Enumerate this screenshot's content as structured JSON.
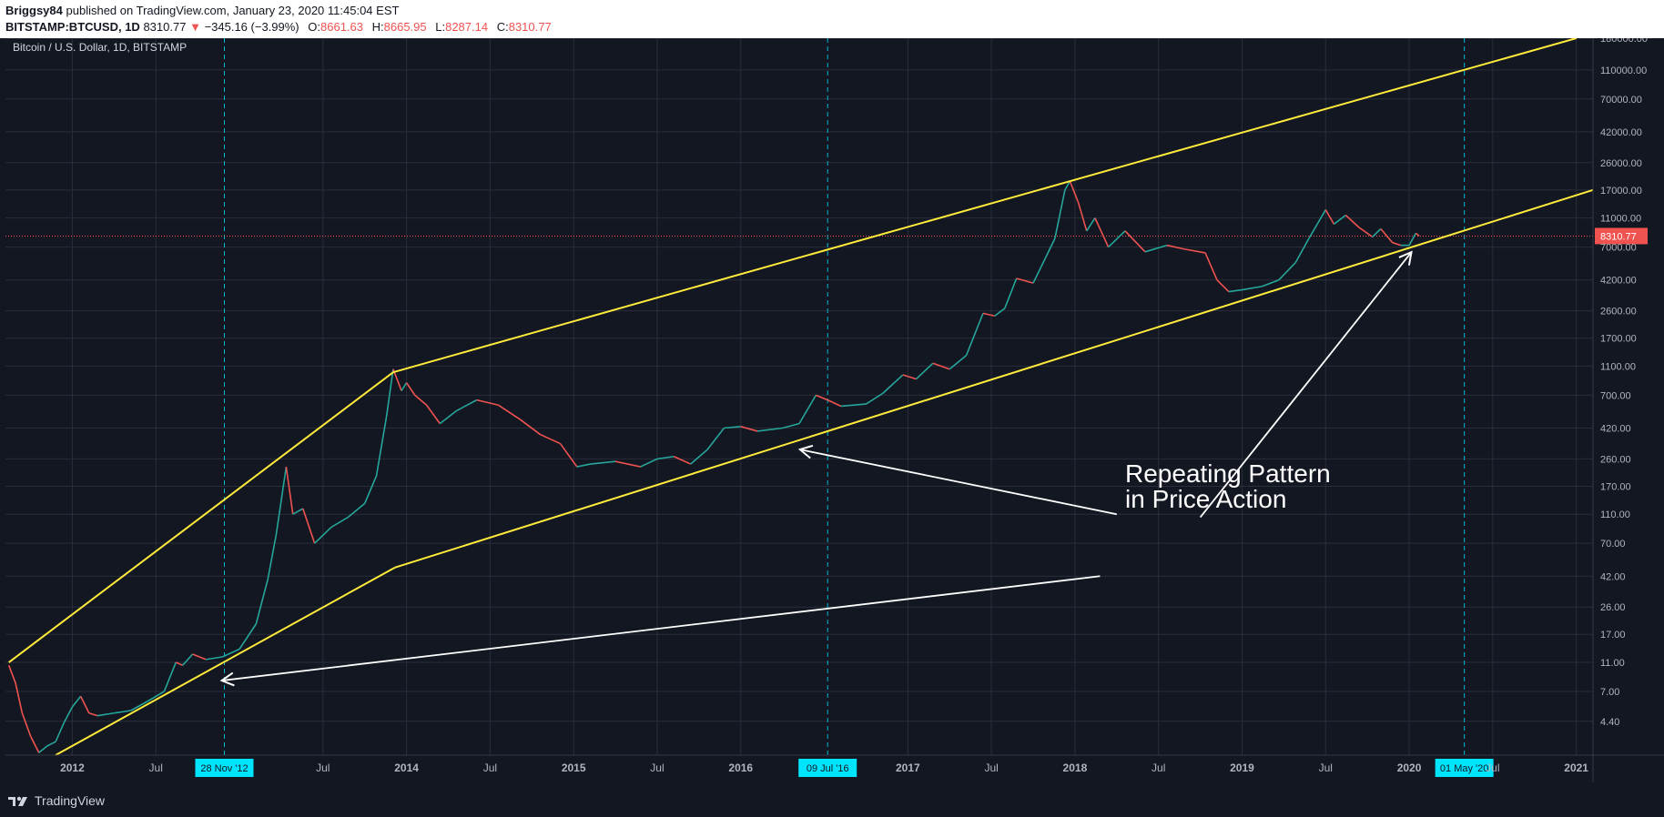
{
  "header": {
    "author": "Briggsy84",
    "published_text": "published on TradingView.com, January 23, 2020 11:45:04 EST",
    "symbol": "BITSTAMP:BTCUSD, 1D",
    "last_price": "8310.77",
    "change_arrow": "▼",
    "change": "−345.16 (−3.99%)",
    "open_label": "O:",
    "open": "8661.63",
    "high_label": "H:",
    "high": "8665.95",
    "low_label": "L:",
    "low": "8287.14",
    "close_label": "C:",
    "close": "8310.77"
  },
  "footer": {
    "brand": "TradingView"
  },
  "chart_data": {
    "type": "line",
    "title": "Bitcoin / U.S. Dollar, 1D, BITSTAMP",
    "scale": "log",
    "ylim": [
      2.6,
      180000
    ],
    "xlim": [
      2011.6,
      2021.1
    ],
    "y_ticks": [
      4.4,
      7,
      11,
      17,
      26,
      42,
      70,
      110,
      170,
      260,
      420,
      700,
      1100,
      1700,
      2600,
      4200,
      7000,
      11000,
      17000,
      26000,
      42000,
      70000,
      110000,
      180000
    ],
    "y_tick_labels": [
      "4.40",
      "7.00",
      "11.00",
      "17.00",
      "26.00",
      "42.00",
      "70.00",
      "110.00",
      "170.00",
      "260.00",
      "420.00",
      "700.00",
      "1100.00",
      "1700.00",
      "2600.00",
      "4200.00",
      "7000.00",
      "11000.00",
      "17000.00",
      "26000.00",
      "42000.00",
      "70000.00",
      "110000.00",
      "180000.00"
    ],
    "x_ticks": [
      {
        "x": 2012.0,
        "label": "2012",
        "bold": true
      },
      {
        "x": 2012.5,
        "label": "Jul",
        "bold": false
      },
      {
        "x": 2013.5,
        "label": "Jul",
        "bold": false
      },
      {
        "x": 2014.0,
        "label": "2014",
        "bold": true
      },
      {
        "x": 2014.5,
        "label": "Jul",
        "bold": false
      },
      {
        "x": 2015.0,
        "label": "2015",
        "bold": true
      },
      {
        "x": 2015.5,
        "label": "Jul",
        "bold": false
      },
      {
        "x": 2016.0,
        "label": "2016",
        "bold": true
      },
      {
        "x": 2017.0,
        "label": "2017",
        "bold": true
      },
      {
        "x": 2017.5,
        "label": "Jul",
        "bold": false
      },
      {
        "x": 2018.0,
        "label": "2018",
        "bold": true
      },
      {
        "x": 2018.5,
        "label": "Jul",
        "bold": false
      },
      {
        "x": 2019.0,
        "label": "2019",
        "bold": true
      },
      {
        "x": 2019.5,
        "label": "Jul",
        "bold": false
      },
      {
        "x": 2020.0,
        "label": "2020",
        "bold": true
      },
      {
        "x": 2020.5,
        "label": "Jul",
        "bold": false
      },
      {
        "x": 2021.0,
        "label": "2021",
        "bold": true
      }
    ],
    "event_markers": [
      {
        "x": 2012.91,
        "label": "28 Nov '12"
      },
      {
        "x": 2016.52,
        "label": "09 Jul '16"
      },
      {
        "x": 2020.33,
        "label": "01 May '20"
      }
    ],
    "current_price": 8310.77,
    "current_price_label": "8310.77",
    "series": [
      {
        "name": "BTCUSD",
        "points": [
          [
            2011.62,
            10.5
          ],
          [
            2011.66,
            8
          ],
          [
            2011.7,
            5
          ],
          [
            2011.75,
            3.5
          ],
          [
            2011.8,
            2.7
          ],
          [
            2011.85,
            3
          ],
          [
            2011.9,
            3.2
          ],
          [
            2011.95,
            4.3
          ],
          [
            2012.0,
            5.5
          ],
          [
            2012.05,
            6.5
          ],
          [
            2012.1,
            5
          ],
          [
            2012.15,
            4.8
          ],
          [
            2012.25,
            5
          ],
          [
            2012.35,
            5.2
          ],
          [
            2012.45,
            6
          ],
          [
            2012.55,
            7
          ],
          [
            2012.62,
            11
          ],
          [
            2012.66,
            10.5
          ],
          [
            2012.72,
            12.5
          ],
          [
            2012.8,
            11.5
          ],
          [
            2012.9,
            12
          ],
          [
            2013.0,
            13.5
          ],
          [
            2013.1,
            20
          ],
          [
            2013.17,
            40
          ],
          [
            2013.22,
            80
          ],
          [
            2013.28,
            230
          ],
          [
            2013.32,
            110
          ],
          [
            2013.38,
            120
          ],
          [
            2013.45,
            70
          ],
          [
            2013.55,
            90
          ],
          [
            2013.65,
            105
          ],
          [
            2013.75,
            130
          ],
          [
            2013.82,
            200
          ],
          [
            2013.88,
            500
          ],
          [
            2013.92,
            1050
          ],
          [
            2013.97,
            750
          ],
          [
            2014.0,
            850
          ],
          [
            2014.05,
            700
          ],
          [
            2014.12,
            600
          ],
          [
            2014.2,
            450
          ],
          [
            2014.3,
            550
          ],
          [
            2014.42,
            650
          ],
          [
            2014.55,
            600
          ],
          [
            2014.68,
            480
          ],
          [
            2014.8,
            380
          ],
          [
            2014.92,
            330
          ],
          [
            2015.02,
            230
          ],
          [
            2015.1,
            240
          ],
          [
            2015.25,
            250
          ],
          [
            2015.4,
            230
          ],
          [
            2015.5,
            260
          ],
          [
            2015.6,
            270
          ],
          [
            2015.7,
            240
          ],
          [
            2015.8,
            300
          ],
          [
            2015.9,
            420
          ],
          [
            2016.0,
            430
          ],
          [
            2016.1,
            400
          ],
          [
            2016.25,
            420
          ],
          [
            2016.35,
            450
          ],
          [
            2016.45,
            700
          ],
          [
            2016.52,
            650
          ],
          [
            2016.6,
            590
          ],
          [
            2016.75,
            610
          ],
          [
            2016.85,
            720
          ],
          [
            2016.97,
            960
          ],
          [
            2017.05,
            900
          ],
          [
            2017.15,
            1150
          ],
          [
            2017.25,
            1050
          ],
          [
            2017.35,
            1300
          ],
          [
            2017.45,
            2500
          ],
          [
            2017.52,
            2400
          ],
          [
            2017.58,
            2700
          ],
          [
            2017.65,
            4300
          ],
          [
            2017.75,
            4000
          ],
          [
            2017.82,
            5800
          ],
          [
            2017.88,
            8000
          ],
          [
            2017.94,
            17000
          ],
          [
            2017.97,
            19500
          ],
          [
            2018.02,
            14000
          ],
          [
            2018.07,
            9000
          ],
          [
            2018.12,
            11000
          ],
          [
            2018.2,
            7000
          ],
          [
            2018.3,
            9000
          ],
          [
            2018.42,
            6500
          ],
          [
            2018.55,
            7200
          ],
          [
            2018.65,
            6800
          ],
          [
            2018.78,
            6400
          ],
          [
            2018.85,
            4200
          ],
          [
            2018.92,
            3500
          ],
          [
            2019.0,
            3600
          ],
          [
            2019.12,
            3800
          ],
          [
            2019.22,
            4200
          ],
          [
            2019.32,
            5500
          ],
          [
            2019.4,
            8000
          ],
          [
            2019.45,
            10000
          ],
          [
            2019.5,
            12500
          ],
          [
            2019.55,
            10000
          ],
          [
            2019.62,
            11500
          ],
          [
            2019.7,
            9500
          ],
          [
            2019.78,
            8200
          ],
          [
            2019.83,
            9300
          ],
          [
            2019.9,
            7500
          ],
          [
            2019.95,
            7200
          ],
          [
            2020.0,
            7200
          ],
          [
            2020.04,
            8700
          ],
          [
            2020.06,
            8310.77
          ]
        ]
      }
    ],
    "trendlines": [
      {
        "name": "early-upper",
        "points": [
          [
            2011.62,
            11
          ],
          [
            2013.92,
            1000
          ]
        ]
      },
      {
        "name": "upper-channel",
        "points": [
          [
            2013.92,
            1000
          ],
          [
            2021.0,
            180000
          ]
        ]
      },
      {
        "name": "early-lower",
        "points": [
          [
            2011.9,
            2.6
          ],
          [
            2013.93,
            48
          ]
        ]
      },
      {
        "name": "lower-channel",
        "points": [
          [
            2013.93,
            48
          ],
          [
            2021.1,
            17000
          ]
        ]
      }
    ],
    "annotation": {
      "lines": [
        "Repeating Pattern",
        "in Price Action"
      ]
    },
    "arrows": [
      {
        "from": [
          2018.25,
          110
        ],
        "to": [
          2016.36,
          300
        ]
      },
      {
        "from": [
          2018.75,
          105
        ],
        "to": [
          2020.01,
          6400
        ]
      },
      {
        "from": [
          2018.15,
          42
        ],
        "to": [
          2012.9,
          8.3
        ]
      }
    ]
  }
}
